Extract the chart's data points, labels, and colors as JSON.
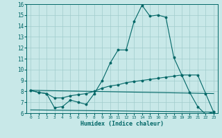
{
  "xlabel": "Humidex (Indice chaleur)",
  "background_color": "#c8e8e8",
  "grid_color": "#a0cccc",
  "line_color": "#006666",
  "xlim": [
    -0.5,
    23.5
  ],
  "ylim": [
    6,
    16
  ],
  "yticks": [
    6,
    7,
    8,
    9,
    10,
    11,
    12,
    13,
    14,
    15,
    16
  ],
  "xticks": [
    0,
    1,
    2,
    3,
    4,
    5,
    6,
    7,
    8,
    9,
    10,
    11,
    12,
    13,
    14,
    15,
    16,
    17,
    18,
    19,
    20,
    21,
    22,
    23
  ],
  "line1_x": [
    0,
    1,
    2,
    3,
    4,
    5,
    6,
    7,
    8,
    9,
    10,
    11,
    12,
    13,
    14,
    15,
    16,
    17,
    18,
    19,
    20,
    21,
    22,
    23
  ],
  "line1_y": [
    8.1,
    7.9,
    7.8,
    6.5,
    6.6,
    7.2,
    7.0,
    6.8,
    7.8,
    9.0,
    10.6,
    11.8,
    11.8,
    14.4,
    15.9,
    14.9,
    15.0,
    14.8,
    11.1,
    9.5,
    7.9,
    6.6,
    5.9,
    6.1
  ],
  "line2_x": [
    0,
    1,
    2,
    3,
    4,
    5,
    6,
    7,
    8,
    9,
    10,
    11,
    12,
    13,
    14,
    15,
    16,
    17,
    18,
    19,
    20,
    21,
    22,
    23
  ],
  "line2_y": [
    8.1,
    7.9,
    7.8,
    7.4,
    7.4,
    7.6,
    7.7,
    7.8,
    8.0,
    8.3,
    8.5,
    8.6,
    8.8,
    8.9,
    9.0,
    9.1,
    9.2,
    9.3,
    9.4,
    9.5,
    9.5,
    9.5,
    7.8,
    6.1
  ],
  "line3_x": [
    0,
    23
  ],
  "line3_y": [
    8.1,
    7.8
  ],
  "line4_x": [
    0,
    23
  ],
  "line4_y": [
    6.3,
    6.1
  ]
}
